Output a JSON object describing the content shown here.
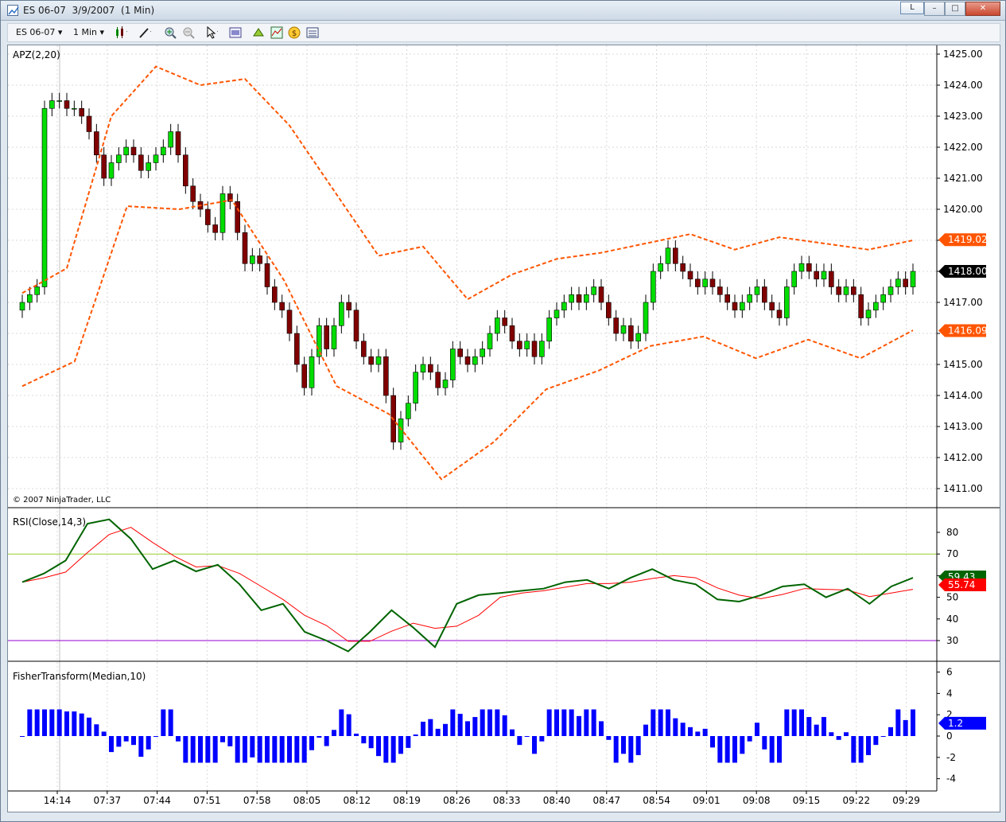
{
  "window": {
    "title": "ES 06-07  3/9/2007  (1 Min)",
    "link_button": "L",
    "minimize": "–",
    "maximize": "□",
    "close": "✕"
  },
  "toolbar": {
    "instrument": "ES 06-07",
    "interval": "1 Min",
    "icons": [
      "candlestick-style-icon",
      "draw-tool-icon",
      "zoom-in-icon",
      "zoom-out-icon",
      "pointer-icon",
      "properties-icon",
      "strategy-icon",
      "indicators-icon",
      "data-box-icon",
      "chart-trader-icon"
    ]
  },
  "colors": {
    "up_candle": "#00dd00",
    "down_candle": "#800000",
    "apz_band": "#ff5500",
    "rsi_line": "#006400",
    "rsi_avg": "#ff0000",
    "rsi_upper": "#9acd32",
    "rsi_lower": "#9400d3",
    "fisher_bar": "#0000ff"
  },
  "panels": {
    "price_label": "APZ(2,20)",
    "copyright": "© 2007 NinjaTrader, LLC",
    "rsi_label": "RSI(Close,14,3)",
    "fisher_label": "FisherTransform(Median,10)"
  },
  "price_axis": {
    "ticks": [
      "1425.00",
      "1424.00",
      "1423.00",
      "1422.00",
      "1421.00",
      "1420.00",
      "1419.00",
      "1418.00",
      "1417.00",
      "1416.00",
      "1415.00",
      "1414.00",
      "1413.00",
      "1412.00",
      "1411.00"
    ],
    "markers": [
      {
        "label": "1419.02",
        "value": 1419.02,
        "color": "#ff5500"
      },
      {
        "label": "1418.00",
        "value": 1418.0,
        "color": "#000000"
      },
      {
        "label": "1416.09",
        "value": 1416.09,
        "color": "#ff5500"
      }
    ]
  },
  "rsi_axis": {
    "ticks": [
      "80",
      "70",
      "60",
      "50",
      "40",
      "30"
    ],
    "markers": [
      {
        "label": "59.43",
        "value": 59.43,
        "color": "#006400"
      },
      {
        "label": "55.74",
        "value": 55.74,
        "color": "#ff0000"
      }
    ]
  },
  "fisher_axis": {
    "ticks": [
      "6",
      "4",
      "2",
      "0",
      "-2",
      "-4"
    ],
    "markers": [
      {
        "label": "1.2",
        "value": 1.2,
        "color": "#0000ff"
      }
    ]
  },
  "time_axis": {
    "labels": [
      "14:14",
      "07:37",
      "07:44",
      "07:51",
      "07:58",
      "08:05",
      "08:12",
      "08:19",
      "08:26",
      "08:33",
      "08:40",
      "08:47",
      "08:54",
      "09:01",
      "09:08",
      "09:15",
      "09:22",
      "09:29"
    ]
  },
  "chart_data": {
    "type": "line",
    "ohlc_sample_close": [
      1417.0,
      1417.5,
      1417.75,
      1423.5,
      1423.75,
      1423.5,
      1422.5,
      1421.0,
      1421.75,
      1421.25,
      1422.5,
      1422.75,
      1421.0,
      1420.0,
      1417.25,
      1417.5,
      1414.25,
      1416.0,
      1415.5,
      1412.5,
      1414.75,
      1415.25,
      1415.5,
      1415.75,
      1416.5,
      1416.0,
      1417.0,
      1417.5,
      1417.25,
      1417.5,
      1416.25,
      1417.0,
      1418.75,
      1418.25,
      1417.5,
      1417.0,
      1417.25,
      1416.75,
      1418.0,
      1417.75,
      1418.25,
      1416.5,
      1417.25,
      1418.0
    ],
    "apz_upper": [
      1417.3,
      1418.1,
      1423.0,
      1424.6,
      1424.0,
      1424.2,
      1422.7,
      1420.6,
      1418.5,
      1418.8,
      1417.1,
      1417.9,
      1418.4,
      1418.6,
      1418.9,
      1419.2,
      1418.7,
      1419.1,
      1418.9,
      1418.7,
      1419.0
    ],
    "apz_lower": [
      1414.3,
      1415.1,
      1420.1,
      1420.0,
      1420.3,
      1417.7,
      1414.3,
      1413.4,
      1411.3,
      1412.5,
      1414.2,
      1414.8,
      1415.6,
      1415.9,
      1415.2,
      1415.8,
      1415.2,
      1416.1
    ],
    "rsi": [
      57,
      61,
      67,
      84,
      86,
      77,
      63,
      67,
      62,
      65,
      56,
      44,
      47,
      34,
      30,
      25,
      34,
      44,
      36,
      27,
      47,
      51,
      52,
      53,
      54,
      57,
      58,
      54,
      59,
      63,
      58,
      56,
      49,
      48,
      51,
      55,
      56,
      50,
      54,
      47,
      55,
      59
    ]
  }
}
